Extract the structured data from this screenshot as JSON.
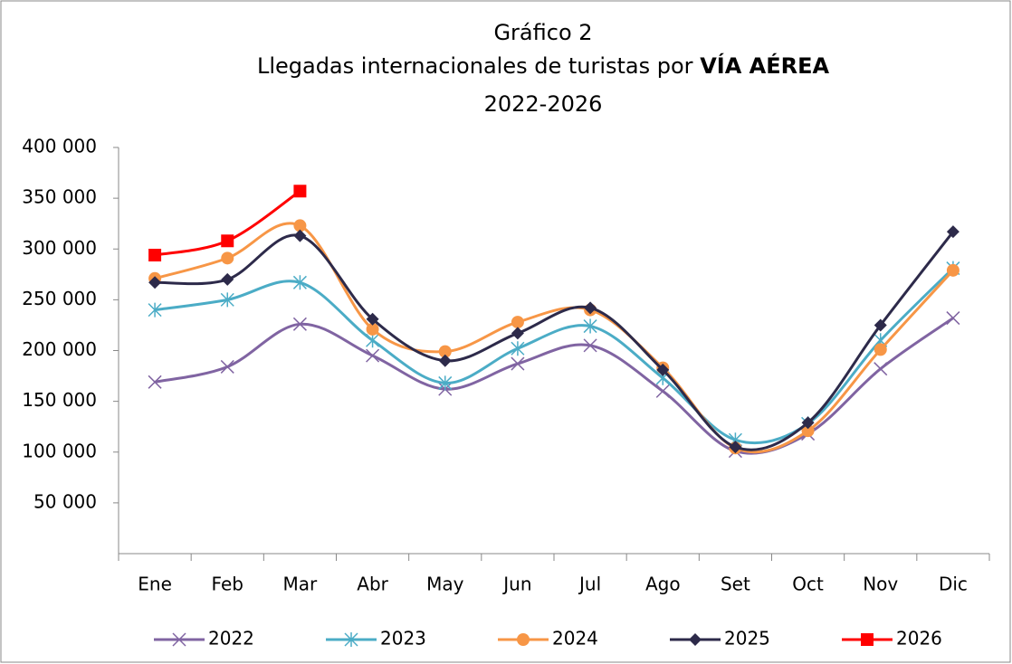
{
  "chart_data": {
    "type": "line",
    "title": "Gráfico 2",
    "subtitle": "Llegadas internacionales de turistas por",
    "subtitle_emphasis": "VÍA AÉREA",
    "subtitle_2": "2022-2026",
    "categories": [
      "Ene",
      "Feb",
      "Mar",
      "Abr",
      "May",
      "Jun",
      "Jul",
      "Ago",
      "Set",
      "Oct",
      "Nov",
      "Dic"
    ],
    "series": [
      {
        "name": "2022",
        "color": "#8064a2",
        "marker": "x",
        "values": [
          169000,
          184000,
          226000,
          195000,
          162000,
          187000,
          205000,
          160000,
          101000,
          118000,
          182000,
          232000
        ]
      },
      {
        "name": "2023",
        "color": "#4bacc6",
        "marker": "star",
        "values": [
          240000,
          250000,
          267000,
          210000,
          168000,
          202000,
          224000,
          173000,
          112000,
          128000,
          210000,
          281000
        ]
      },
      {
        "name": "2024",
        "color": "#f79646",
        "marker": "circle",
        "values": [
          271000,
          291000,
          323000,
          221000,
          199000,
          228000,
          240000,
          183000,
          104000,
          121000,
          201000,
          279000
        ]
      },
      {
        "name": "2025",
        "color": "#2d2a4a",
        "marker": "diamond",
        "values": [
          267000,
          270000,
          313000,
          231000,
          190000,
          217000,
          242000,
          181000,
          105000,
          129000,
          225000,
          317000
        ]
      },
      {
        "name": "2026",
        "color": "#ff0000",
        "marker": "square",
        "values": [
          294000,
          308000,
          357000,
          null,
          null,
          null,
          null,
          null,
          null,
          null,
          null,
          null
        ]
      }
    ],
    "ylim": [
      0,
      400000
    ],
    "yticks": [
      {
        "value": 50000,
        "label": "50 000"
      },
      {
        "value": 100000,
        "label": "100 000"
      },
      {
        "value": 150000,
        "label": "150 000"
      },
      {
        "value": 200000,
        "label": "200 000"
      },
      {
        "value": 250000,
        "label": "250 000"
      },
      {
        "value": 300000,
        "label": "300 000"
      },
      {
        "value": 350000,
        "label": "350 000"
      },
      {
        "value": 400000,
        "label": "400 000"
      }
    ],
    "grid": false,
    "smooth": true,
    "legend": "bottom"
  }
}
